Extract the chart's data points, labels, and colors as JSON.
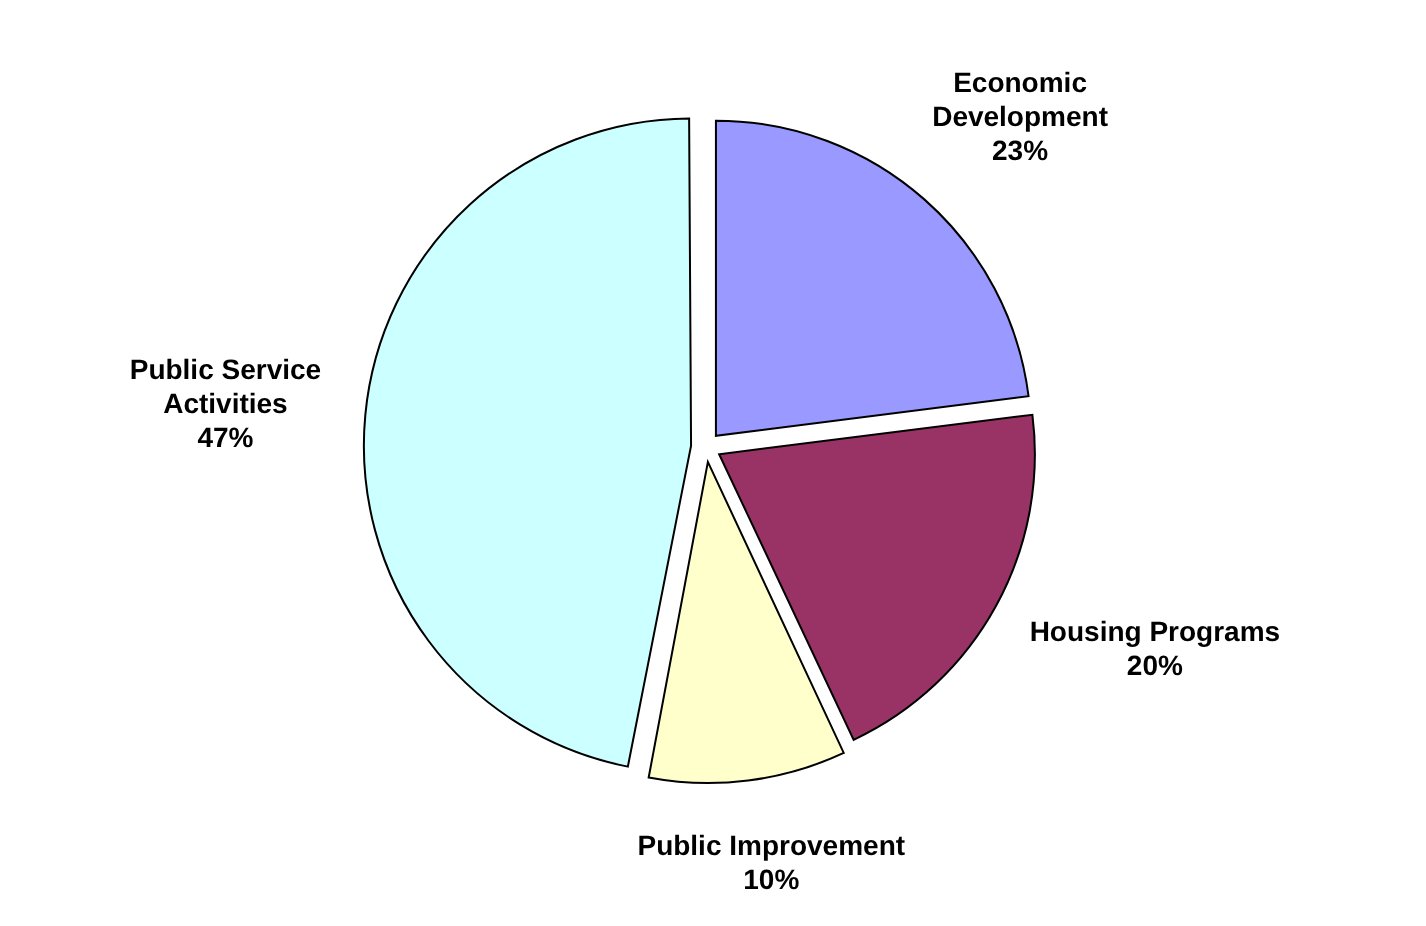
{
  "chart_data": {
    "type": "pie",
    "categories": [
      "Economic Development",
      "Housing Programs",
      "Public Improvement",
      "Public Service Activities"
    ],
    "values": [
      23,
      20,
      10,
      47
    ],
    "colors": [
      "#9999ff",
      "#993366",
      "#ffffcc",
      "#ccffff"
    ],
    "value_labels": [
      "23%",
      "20%",
      "10%",
      "47%"
    ],
    "legend": false
  }
}
